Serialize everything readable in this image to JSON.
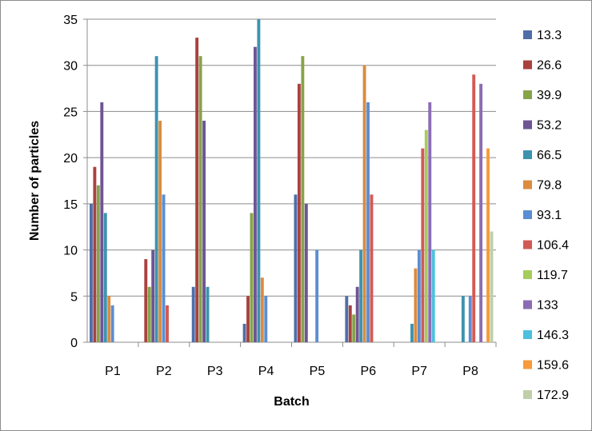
{
  "chart_data": {
    "type": "bar",
    "title": "",
    "xlabel": "Batch",
    "ylabel": "Number of particles",
    "ylim": [
      0,
      35
    ],
    "yticks": [
      0,
      5,
      10,
      15,
      20,
      25,
      30,
      35
    ],
    "grid": true,
    "legend_position": "right",
    "categories": [
      "P1",
      "P2",
      "P3",
      "P4",
      "P5",
      "P6",
      "P7",
      "P8"
    ],
    "series": [
      {
        "name": "13.3",
        "color": "#4F6EA8",
        "values": [
          15,
          0,
          6,
          2,
          16,
          5,
          0,
          0
        ]
      },
      {
        "name": "26.6",
        "color": "#A9423F",
        "values": [
          19,
          9,
          33,
          5,
          28,
          4,
          0,
          0
        ]
      },
      {
        "name": "39.9",
        "color": "#86A34A",
        "values": [
          17,
          6,
          31,
          14,
          31,
          3,
          0,
          0
        ]
      },
      {
        "name": "53.2",
        "color": "#6E5594",
        "values": [
          26,
          10,
          24,
          32,
          15,
          6,
          0,
          0
        ]
      },
      {
        "name": "66.5",
        "color": "#3D93AE",
        "values": [
          14,
          31,
          6,
          35,
          0,
          10,
          2,
          5
        ]
      },
      {
        "name": "79.8",
        "color": "#DC8B3F",
        "values": [
          5,
          24,
          0,
          7,
          0,
          30,
          8,
          0
        ]
      },
      {
        "name": "93.1",
        "color": "#5B8ED2",
        "values": [
          4,
          16,
          0,
          5,
          10,
          26,
          10,
          5
        ]
      },
      {
        "name": "106.4",
        "color": "#D25A55",
        "values": [
          0,
          4,
          0,
          0,
          0,
          16,
          21,
          29
        ]
      },
      {
        "name": "119.7",
        "color": "#A6CC5A",
        "values": [
          0,
          0,
          0,
          0,
          0,
          0,
          23,
          0
        ]
      },
      {
        "name": "133",
        "color": "#8B6CB4",
        "values": [
          0,
          0,
          0,
          0,
          0,
          0,
          26,
          28
        ]
      },
      {
        "name": "146.3",
        "color": "#4DC0DE",
        "values": [
          0,
          0,
          0,
          0,
          0,
          0,
          10,
          0
        ]
      },
      {
        "name": "159.6",
        "color": "#F79A3A",
        "values": [
          0,
          0,
          0,
          0,
          0,
          0,
          0,
          21
        ]
      },
      {
        "name": "172.9",
        "color": "#BFCFA8",
        "values": [
          0,
          0,
          0,
          0,
          0,
          0,
          0,
          12
        ]
      }
    ]
  }
}
